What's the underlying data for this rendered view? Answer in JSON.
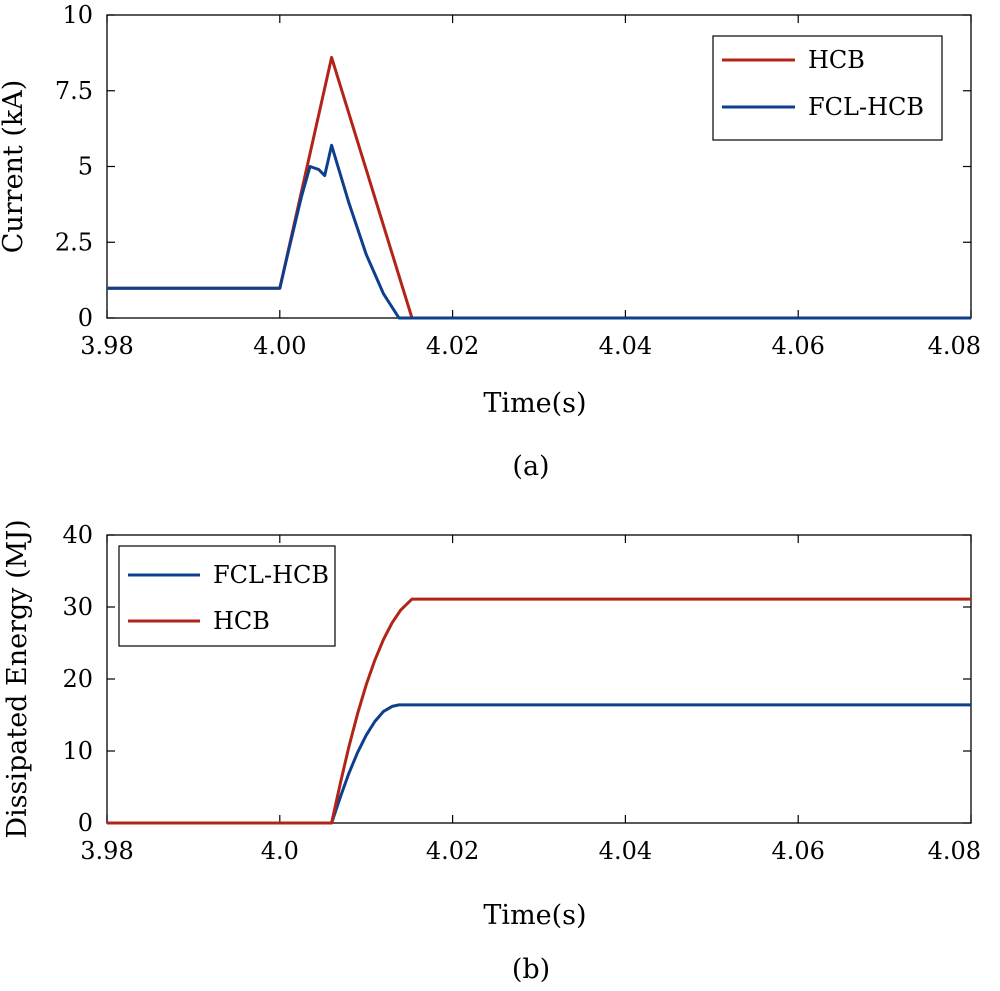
{
  "chart_data": [
    {
      "type": "line",
      "caption": "(a)",
      "title": "",
      "xlabel": "Time(s)",
      "ylabel": "Current (kA)",
      "xlim": [
        3.98,
        4.08
      ],
      "ylim": [
        0,
        10
      ],
      "xticks": [
        3.98,
        4.0,
        4.02,
        4.04,
        4.06,
        4.08
      ],
      "xtick_labels": [
        "3.98",
        "4.00",
        "4.02",
        "4.04",
        "4.06",
        "4.08"
      ],
      "yticks": [
        0,
        2.5,
        5,
        7.5,
        10
      ],
      "ytick_labels": [
        "0",
        "2.5",
        "5",
        "7.5",
        "10"
      ],
      "grid": false,
      "legend_position": "top-right",
      "series": [
        {
          "name": "HCB",
          "color": "#B22418",
          "x": [
            3.98,
            4.0,
            4.006,
            4.0153,
            4.08
          ],
          "y": [
            0.98,
            0.98,
            8.6,
            0,
            0
          ]
        },
        {
          "name": "FCL-HCB",
          "color": "#0E3F8C",
          "x": [
            3.98,
            4.0,
            4.001,
            4.0025,
            4.0035,
            4.0045,
            4.0052,
            4.006,
            4.008,
            4.01,
            4.012,
            4.0138,
            4.08
          ],
          "y": [
            0.98,
            0.98,
            2.2,
            4.0,
            5.0,
            4.9,
            4.7,
            5.7,
            3.8,
            2.1,
            0.8,
            0,
            0
          ]
        }
      ]
    },
    {
      "type": "line",
      "caption": "(b)",
      "title": "",
      "xlabel": "Time(s)",
      "ylabel": "Dissipated Energy (MJ)",
      "xlim": [
        3.98,
        4.08
      ],
      "ylim": [
        0,
        40
      ],
      "xticks": [
        3.98,
        4.0,
        4.02,
        4.04,
        4.06,
        4.08
      ],
      "xtick_labels": [
        "3.98",
        "4.0",
        "4.02",
        "4.04",
        "4.06",
        "4.08"
      ],
      "yticks": [
        0,
        10,
        20,
        30,
        40
      ],
      "ytick_labels": [
        "0",
        "10",
        "20",
        "30",
        "40"
      ],
      "grid": false,
      "legend_position": "top-left",
      "series": [
        {
          "name": "FCL-HCB",
          "color": "#0E3F8C",
          "x": [
            3.98,
            4.006,
            4.007,
            4.008,
            4.009,
            4.01,
            4.011,
            4.012,
            4.013,
            4.0138,
            4.08
          ],
          "y": [
            0,
            0,
            3.6,
            6.9,
            9.8,
            12.2,
            14.1,
            15.5,
            16.2,
            16.4,
            16.4
          ]
        },
        {
          "name": "HCB",
          "color": "#B22418",
          "x": [
            3.98,
            4.006,
            4.007,
            4.008,
            4.009,
            4.01,
            4.011,
            4.012,
            4.013,
            4.014,
            4.0153,
            4.08
          ],
          "y": [
            0,
            0,
            5.5,
            10.6,
            15.2,
            19.2,
            22.6,
            25.5,
            27.8,
            29.6,
            31.1,
            31.1
          ]
        }
      ]
    }
  ]
}
